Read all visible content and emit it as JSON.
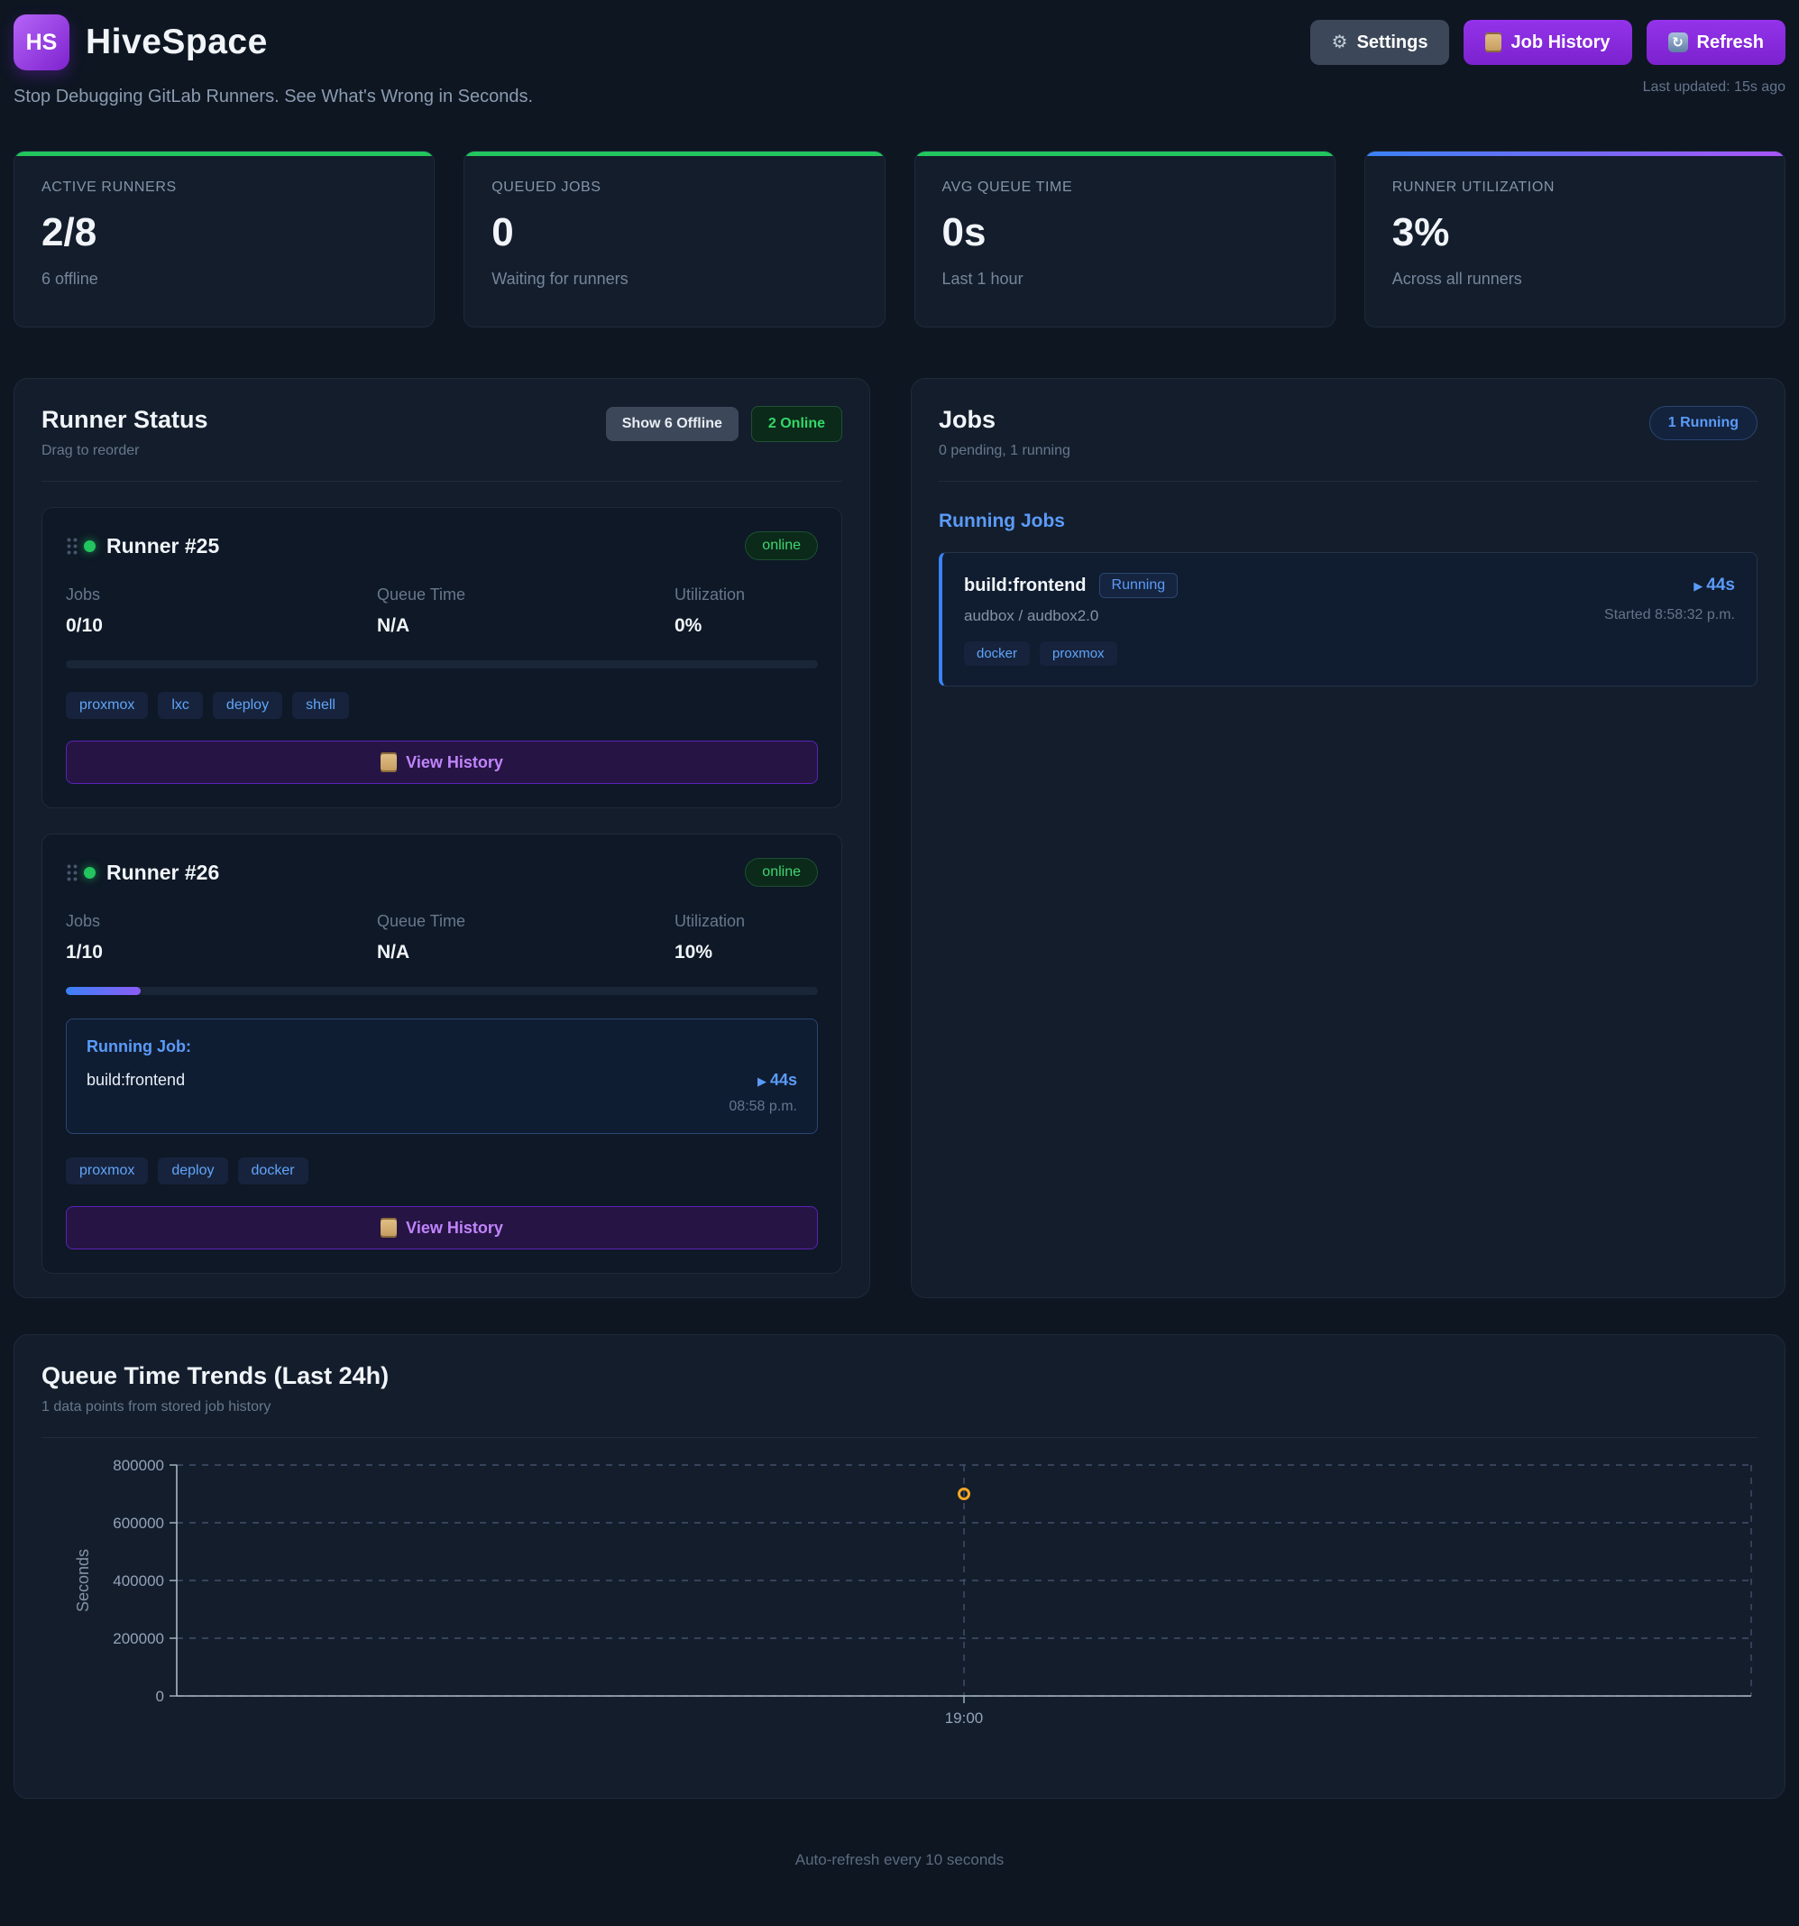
{
  "header": {
    "logo_text": "HS",
    "app_name": "HiveSpace",
    "tagline": "Stop Debugging GitLab Runners. See What's Wrong in Seconds.",
    "settings_label": "Settings",
    "job_history_label": "Job History",
    "refresh_label": "Refresh",
    "last_updated": "Last updated: 15s ago"
  },
  "icons": {
    "gear": "⚙",
    "refresh_glyph": "↻",
    "play": "▶"
  },
  "stats": [
    {
      "label": "ACTIVE RUNNERS",
      "value": "2/8",
      "sub": "6 offline",
      "accent": "#22c55e"
    },
    {
      "label": "QUEUED JOBS",
      "value": "0",
      "sub": "Waiting for runners",
      "accent": "#22c55e"
    },
    {
      "label": "AVG QUEUE TIME",
      "value": "0s",
      "sub": "Last 1 hour",
      "accent": "#22c55e"
    },
    {
      "label": "RUNNER UTILIZATION",
      "value": "3%",
      "sub": "Across all runners",
      "accent": "blue-purple-gradient"
    }
  ],
  "runner_status": {
    "title": "Runner Status",
    "subtitle": "Drag to reorder",
    "show_offline_label": "Show 6 Offline",
    "online_filter_label": "2 Online",
    "metric_labels": [
      "Jobs",
      "Queue Time",
      "Utilization"
    ],
    "view_history_label": "View History",
    "runners": [
      {
        "name": "Runner #25",
        "status": "online",
        "jobs": "0/10",
        "queue": "N/A",
        "util": "0%",
        "util_pct": 0,
        "tags": [
          "proxmox",
          "lxc",
          "deploy",
          "shell"
        ]
      },
      {
        "name": "Runner #26",
        "status": "online",
        "jobs": "1/10",
        "queue": "N/A",
        "util": "10%",
        "util_pct": 10,
        "tags": [
          "proxmox",
          "deploy",
          "docker"
        ],
        "running_job": {
          "label": "Running Job:",
          "name": "build:frontend",
          "duration": "44s",
          "time": "08:58 p.m."
        }
      }
    ]
  },
  "jobs_panel": {
    "title": "Jobs",
    "subtitle": "0 pending, 1 running",
    "badge": "1 Running",
    "section_title": "Running Jobs",
    "job": {
      "name": "build:frontend",
      "status": "Running",
      "project": "audbox / audbox2.0",
      "duration": "44s",
      "started": "Started 8:58:32 p.m.",
      "tags": [
        "docker",
        "proxmox"
      ]
    }
  },
  "chart_panel": {
    "title": "Queue Time Trends (Last 24h)",
    "subtitle": "1 data points from stored job history"
  },
  "chart_data": {
    "type": "scatter",
    "title": "Queue Time Trends (Last 24h)",
    "xlabel": "",
    "ylabel": "Seconds",
    "x": [
      "19:00"
    ],
    "values": [
      700000
    ],
    "ylim": [
      0,
      800000
    ],
    "yticks": [
      0,
      200000,
      400000,
      600000,
      800000
    ],
    "xticks": [
      "19:00"
    ],
    "grid": "dashed",
    "legend": "none",
    "point_color": "#f5a623"
  },
  "footer": {
    "text": "Auto-refresh every 10 seconds"
  }
}
